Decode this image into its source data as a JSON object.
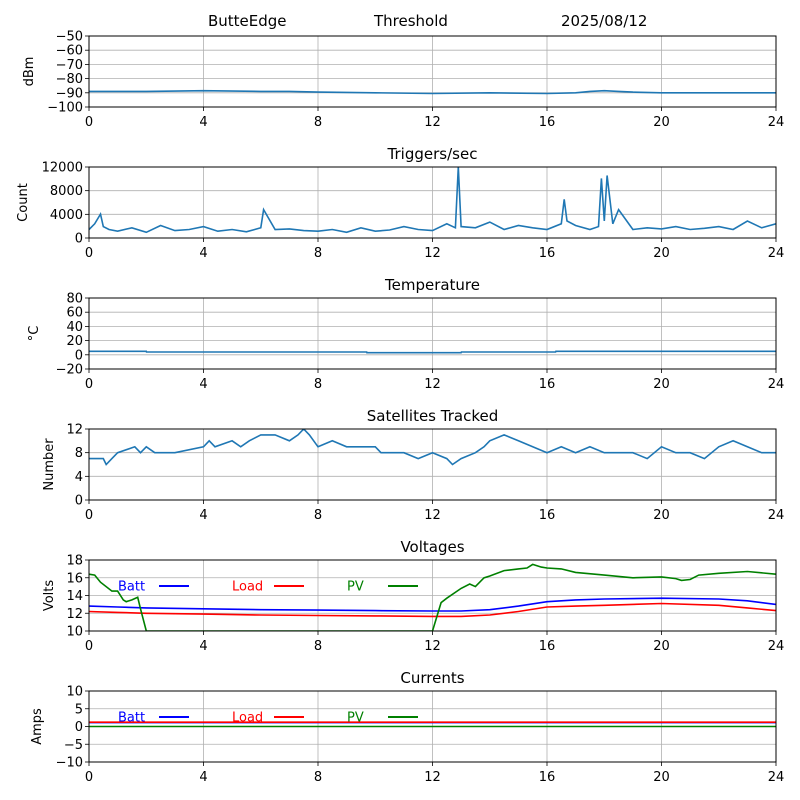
{
  "header": {
    "station": "ButteEdge",
    "mode": "Threshold",
    "date": "2025/08/12"
  },
  "chart_data": [
    {
      "type": "line",
      "title": "",
      "xlabel": "",
      "ylabel": "dBm",
      "xlim": [
        0,
        24
      ],
      "ylim": [
        -100,
        -50
      ],
      "xticks": [
        "0",
        "4",
        "8",
        "12",
        "16",
        "20",
        "24"
      ],
      "yticks": [
        "−100",
        "−90",
        "−80",
        "−70",
        "−60",
        "−50"
      ],
      "grid": true,
      "series": [
        {
          "color": "#1f77b4",
          "x": [
            0,
            2,
            4,
            6,
            7,
            8,
            10,
            12,
            14,
            16,
            17,
            17.5,
            18,
            18.5,
            19,
            20,
            22,
            24
          ],
          "y": [
            -89,
            -89,
            -88.5,
            -89,
            -89,
            -89.5,
            -90,
            -90.5,
            -90,
            -90.5,
            -90,
            -89,
            -88.5,
            -89,
            -89.5,
            -90,
            -90,
            -90
          ]
        }
      ]
    },
    {
      "type": "line",
      "title": "Triggers/sec",
      "xlabel": "",
      "ylabel": "Count",
      "xlim": [
        0,
        24
      ],
      "ylim": [
        0,
        12500
      ],
      "xticks": [
        "0",
        "4",
        "8",
        "12",
        "16",
        "20",
        "24"
      ],
      "yticks": [
        "0",
        "4000",
        "8000",
        "12000"
      ],
      "grid": true,
      "series": [
        {
          "color": "#1f77b4",
          "x": [
            0,
            0.2,
            0.4,
            0.5,
            0.7,
            1,
            1.5,
            2,
            2.5,
            3,
            3.5,
            4,
            4.5,
            5,
            5.5,
            6,
            6.1,
            6.5,
            7,
            7.5,
            8,
            8.5,
            9,
            9.5,
            10,
            10.5,
            11,
            11.5,
            12,
            12.5,
            12.8,
            12.9,
            13,
            13.5,
            14,
            14.5,
            15,
            15.5,
            16,
            16.5,
            16.6,
            16.7,
            17,
            17.5,
            17.8,
            17.9,
            18,
            18.1,
            18.3,
            18.5,
            19,
            19.5,
            20,
            20.5,
            21,
            21.5,
            22,
            22.5,
            23,
            23.5,
            24
          ],
          "y": [
            1500,
            2500,
            4200,
            2000,
            1500,
            1200,
            1800,
            1000,
            2200,
            1300,
            1500,
            2000,
            1200,
            1500,
            1100,
            1800,
            5000,
            1500,
            1600,
            1300,
            1200,
            1500,
            1000,
            1800,
            1200,
            1400,
            2000,
            1500,
            1300,
            2500,
            1800,
            12500,
            2000,
            1800,
            2800,
            1500,
            2200,
            1800,
            1500,
            2500,
            6800,
            3000,
            2200,
            1500,
            2000,
            10500,
            3000,
            11000,
            2500,
            5000,
            1500,
            1800,
            1600,
            2000,
            1500,
            1700,
            2000,
            1500,
            3000,
            1800,
            2500
          ]
        }
      ]
    },
    {
      "type": "line",
      "title": "Temperature",
      "xlabel": "",
      "ylabel": "°C",
      "xlim": [
        0,
        24
      ],
      "ylim": [
        -20,
        80
      ],
      "xticks": [
        "0",
        "4",
        "8",
        "12",
        "16",
        "20",
        "24"
      ],
      "yticks": [
        "−20",
        "0",
        "20",
        "40",
        "60",
        "80"
      ],
      "grid": true,
      "series": [
        {
          "color": "#1f77b4",
          "x": [
            0,
            2,
            2.01,
            9.7,
            9.71,
            13,
            13.01,
            16.3,
            16.31,
            24
          ],
          "y": [
            5,
            5,
            4,
            4,
            3,
            3,
            4,
            4,
            5,
            5
          ]
        }
      ]
    },
    {
      "type": "line",
      "title": "Satellites Tracked",
      "xlabel": "",
      "ylabel": "Number",
      "xlim": [
        0,
        24
      ],
      "ylim": [
        0,
        12
      ],
      "xticks": [
        "0",
        "4",
        "8",
        "12",
        "16",
        "20",
        "24"
      ],
      "yticks": [
        "0",
        "4",
        "8",
        "12"
      ],
      "grid": true,
      "series": [
        {
          "color": "#1f77b4",
          "x": [
            0,
            0.5,
            0.6,
            0.8,
            1,
            1.6,
            1.8,
            2,
            2.3,
            3,
            4,
            4.2,
            4.4,
            5,
            5.3,
            5.6,
            6,
            6.5,
            7,
            7.3,
            7.5,
            7.7,
            8,
            8.5,
            9,
            10,
            10.2,
            11,
            11.5,
            12,
            12.5,
            12.7,
            13,
            13.5,
            13.8,
            14,
            14.5,
            15,
            15.5,
            16,
            16.5,
            17,
            17.5,
            18,
            18.5,
            19,
            19.5,
            20,
            20.5,
            21,
            21.5,
            22,
            22.5,
            23,
            23.5,
            24
          ],
          "y": [
            7,
            7,
            6,
            7,
            8,
            9,
            8,
            9,
            8,
            8,
            9,
            10,
            9,
            10,
            9,
            10,
            11,
            11,
            10,
            11,
            12,
            11,
            9,
            10,
            9,
            9,
            8,
            8,
            7,
            8,
            7,
            6,
            7,
            8,
            9,
            10,
            11,
            10,
            9,
            8,
            9,
            8,
            9,
            8,
            8,
            8,
            7,
            9,
            8,
            8,
            7,
            9,
            10,
            9,
            8,
            8
          ]
        }
      ]
    },
    {
      "type": "line",
      "title": "Voltages",
      "xlabel": "",
      "ylabel": "Volts",
      "xlim": [
        0,
        24
      ],
      "ylim": [
        10,
        18
      ],
      "xticks": [
        "0",
        "4",
        "8",
        "12",
        "16",
        "20",
        "24"
      ],
      "yticks": [
        "10",
        "12",
        "14",
        "16",
        "18"
      ],
      "grid": true,
      "legend": {
        "placement": "top-left",
        "entries": [
          "Batt",
          "Load",
          "PV"
        ]
      },
      "series": [
        {
          "name": "Batt",
          "color": "#0000ff",
          "x": [
            0,
            1,
            2,
            4,
            6,
            8,
            10,
            12,
            13,
            14,
            15,
            16,
            17,
            18,
            20,
            22,
            23,
            24
          ],
          "y": [
            12.8,
            12.7,
            12.6,
            12.5,
            12.4,
            12.35,
            12.3,
            12.25,
            12.25,
            12.4,
            12.8,
            13.3,
            13.5,
            13.6,
            13.7,
            13.6,
            13.4,
            13.0
          ]
        },
        {
          "name": "Load",
          "color": "#ff0000",
          "x": [
            0,
            1,
            2,
            4,
            6,
            8,
            10,
            12,
            13,
            14,
            15,
            16,
            17,
            18,
            20,
            22,
            23,
            24
          ],
          "y": [
            12.2,
            12.1,
            12.0,
            11.9,
            11.8,
            11.75,
            11.7,
            11.65,
            11.65,
            11.8,
            12.2,
            12.7,
            12.8,
            12.9,
            13.1,
            12.9,
            12.6,
            12.3
          ]
        },
        {
          "name": "PV",
          "color": "#008000",
          "x": [
            0,
            0.2,
            0.4,
            0.8,
            1,
            1.2,
            1.3,
            1.5,
            1.7,
            1.8,
            2,
            12,
            12.3,
            12.5,
            13,
            13.3,
            13.5,
            13.8,
            14,
            14.5,
            15,
            15.3,
            15.5,
            15.8,
            16,
            16.5,
            17,
            18,
            19,
            20,
            20.5,
            20.7,
            21,
            21.3,
            22,
            23,
            24
          ],
          "y": [
            16.4,
            16.3,
            15.5,
            14.5,
            14.5,
            13.5,
            13.3,
            13.5,
            13.8,
            12.5,
            10,
            10,
            13.2,
            13.7,
            14.8,
            15.3,
            15.0,
            16.0,
            16.2,
            16.8,
            17.0,
            17.1,
            17.5,
            17.2,
            17.1,
            17.0,
            16.6,
            16.3,
            16.0,
            16.1,
            15.9,
            15.7,
            15.8,
            16.3,
            16.5,
            16.7,
            16.4
          ]
        }
      ]
    },
    {
      "type": "line",
      "title": "Currents",
      "xlabel": "",
      "ylabel": "Amps",
      "xlim": [
        0,
        24
      ],
      "ylim": [
        -10,
        10
      ],
      "xticks": [
        "0",
        "4",
        "8",
        "12",
        "16",
        "20",
        "24"
      ],
      "yticks": [
        "−10",
        "−5",
        "0",
        "5",
        "10"
      ],
      "grid": true,
      "legend": {
        "placement": "top-left",
        "entries": [
          "Batt",
          "Load",
          "PV"
        ]
      },
      "series": [
        {
          "name": "Batt",
          "color": "#0000ff",
          "x": [
            0,
            24
          ],
          "y": [
            1.1,
            1.1
          ]
        },
        {
          "name": "Load",
          "color": "#ff0000",
          "x": [
            0,
            24
          ],
          "y": [
            1.2,
            1.2
          ]
        },
        {
          "name": "PV",
          "color": "#008000",
          "x": [
            0,
            24
          ],
          "y": [
            0,
            0
          ]
        }
      ]
    }
  ]
}
